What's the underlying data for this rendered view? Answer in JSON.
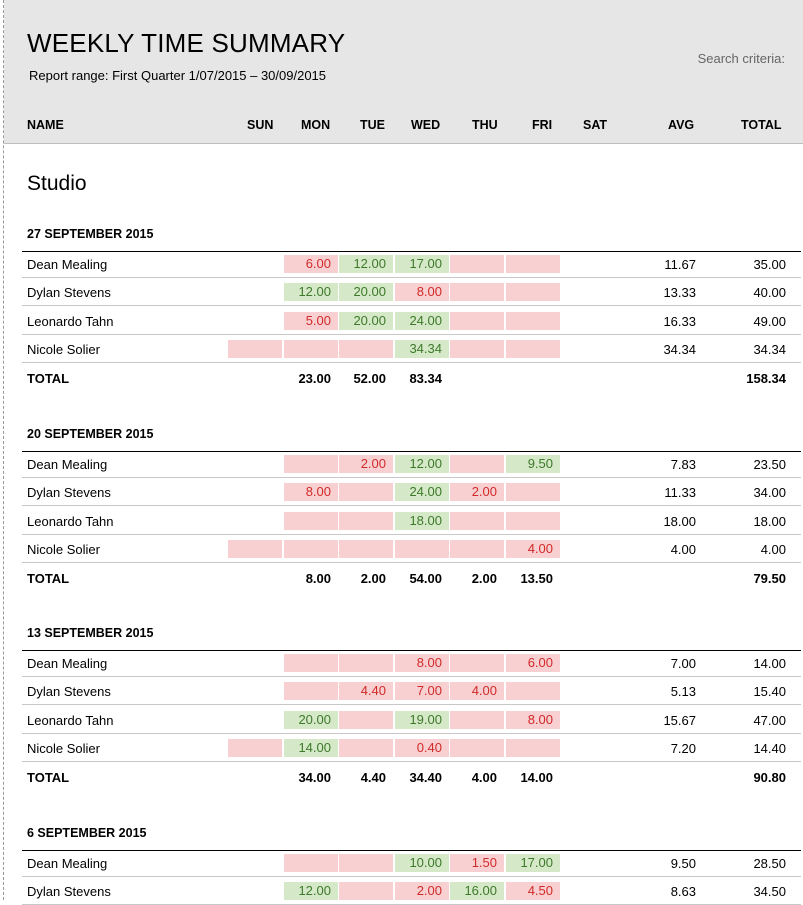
{
  "report": {
    "title": "WEEKLY TIME SUMMARY",
    "range": "Report range: First Quarter 1/07/2015 – 30/09/2015",
    "search_label": "Search criteria:"
  },
  "columns": [
    "NAME",
    "SUN",
    "MON",
    "TUE",
    "WED",
    "THU",
    "FRI",
    "SAT",
    "AVG",
    "TOTAL"
  ],
  "section_title": "Studio",
  "colors": {
    "over": "#d5e8c8",
    "under": "#f9d0d1"
  },
  "weeks": [
    {
      "label": "27 SEPTEMBER 2015",
      "rows": [
        {
          "name": "Dean Mealing",
          "cells": [
            {
              "v": "",
              "s": ""
            },
            {
              "v": "6.00",
              "s": "red"
            },
            {
              "v": "12.00",
              "s": "green"
            },
            {
              "v": "17.00",
              "s": "green"
            },
            {
              "v": "",
              "s": "red"
            },
            {
              "v": "",
              "s": "red"
            },
            {
              "v": "",
              "s": ""
            }
          ],
          "avg": "11.67",
          "total": "35.00"
        },
        {
          "name": "Dylan Stevens",
          "cells": [
            {
              "v": "",
              "s": ""
            },
            {
              "v": "12.00",
              "s": "green"
            },
            {
              "v": "20.00",
              "s": "green"
            },
            {
              "v": "8.00",
              "s": "red"
            },
            {
              "v": "",
              "s": "red"
            },
            {
              "v": "",
              "s": "red"
            },
            {
              "v": "",
              "s": ""
            }
          ],
          "avg": "13.33",
          "total": "40.00"
        },
        {
          "name": "Leonardo Tahn",
          "cells": [
            {
              "v": "",
              "s": ""
            },
            {
              "v": "5.00",
              "s": "red"
            },
            {
              "v": "20.00",
              "s": "green"
            },
            {
              "v": "24.00",
              "s": "green"
            },
            {
              "v": "",
              "s": "red"
            },
            {
              "v": "",
              "s": "red"
            },
            {
              "v": "",
              "s": ""
            }
          ],
          "avg": "16.33",
          "total": "49.00"
        },
        {
          "name": "Nicole Solier",
          "cells": [
            {
              "v": "",
              "s": "red"
            },
            {
              "v": "",
              "s": "red"
            },
            {
              "v": "",
              "s": "red"
            },
            {
              "v": "34.34",
              "s": "green"
            },
            {
              "v": "",
              "s": "red"
            },
            {
              "v": "",
              "s": "red"
            },
            {
              "v": "",
              "s": ""
            }
          ],
          "avg": "34.34",
          "total": "34.34"
        }
      ],
      "totals": {
        "label": "TOTAL",
        "days": [
          "",
          "23.00",
          "52.00",
          "83.34",
          "",
          "",
          ""
        ],
        "total": "158.34"
      }
    },
    {
      "label": "20 SEPTEMBER 2015",
      "rows": [
        {
          "name": "Dean Mealing",
          "cells": [
            {
              "v": "",
              "s": ""
            },
            {
              "v": "",
              "s": "red"
            },
            {
              "v": "2.00",
              "s": "red"
            },
            {
              "v": "12.00",
              "s": "green"
            },
            {
              "v": "",
              "s": "red"
            },
            {
              "v": "9.50",
              "s": "green"
            },
            {
              "v": "",
              "s": ""
            }
          ],
          "avg": "7.83",
          "total": "23.50"
        },
        {
          "name": "Dylan Stevens",
          "cells": [
            {
              "v": "",
              "s": ""
            },
            {
              "v": "8.00",
              "s": "red"
            },
            {
              "v": "",
              "s": "red"
            },
            {
              "v": "24.00",
              "s": "green"
            },
            {
              "v": "2.00",
              "s": "red"
            },
            {
              "v": "",
              "s": "red"
            },
            {
              "v": "",
              "s": ""
            }
          ],
          "avg": "11.33",
          "total": "34.00"
        },
        {
          "name": "Leonardo Tahn",
          "cells": [
            {
              "v": "",
              "s": ""
            },
            {
              "v": "",
              "s": "red"
            },
            {
              "v": "",
              "s": "red"
            },
            {
              "v": "18.00",
              "s": "green"
            },
            {
              "v": "",
              "s": "red"
            },
            {
              "v": "",
              "s": "red"
            },
            {
              "v": "",
              "s": ""
            }
          ],
          "avg": "18.00",
          "total": "18.00"
        },
        {
          "name": "Nicole Solier",
          "cells": [
            {
              "v": "",
              "s": "red"
            },
            {
              "v": "",
              "s": "red"
            },
            {
              "v": "",
              "s": "red"
            },
            {
              "v": "",
              "s": "red"
            },
            {
              "v": "",
              "s": "red"
            },
            {
              "v": "4.00",
              "s": "red"
            },
            {
              "v": "",
              "s": ""
            }
          ],
          "avg": "4.00",
          "total": "4.00"
        }
      ],
      "totals": {
        "label": "TOTAL",
        "days": [
          "",
          "8.00",
          "2.00",
          "54.00",
          "2.00",
          "13.50",
          ""
        ],
        "total": "79.50"
      }
    },
    {
      "label": "13 SEPTEMBER 2015",
      "rows": [
        {
          "name": "Dean Mealing",
          "cells": [
            {
              "v": "",
              "s": ""
            },
            {
              "v": "",
              "s": "red"
            },
            {
              "v": "",
              "s": "red"
            },
            {
              "v": "8.00",
              "s": "red"
            },
            {
              "v": "",
              "s": "red"
            },
            {
              "v": "6.00",
              "s": "red"
            },
            {
              "v": "",
              "s": ""
            }
          ],
          "avg": "7.00",
          "total": "14.00"
        },
        {
          "name": "Dylan Stevens",
          "cells": [
            {
              "v": "",
              "s": ""
            },
            {
              "v": "",
              "s": "red"
            },
            {
              "v": "4.40",
              "s": "red"
            },
            {
              "v": "7.00",
              "s": "red"
            },
            {
              "v": "4.00",
              "s": "red"
            },
            {
              "v": "",
              "s": "red"
            },
            {
              "v": "",
              "s": ""
            }
          ],
          "avg": "5.13",
          "total": "15.40"
        },
        {
          "name": "Leonardo Tahn",
          "cells": [
            {
              "v": "",
              "s": ""
            },
            {
              "v": "20.00",
              "s": "green"
            },
            {
              "v": "",
              "s": "red"
            },
            {
              "v": "19.00",
              "s": "green"
            },
            {
              "v": "",
              "s": "red"
            },
            {
              "v": "8.00",
              "s": "red"
            },
            {
              "v": "",
              "s": ""
            }
          ],
          "avg": "15.67",
          "total": "47.00"
        },
        {
          "name": "Nicole Solier",
          "cells": [
            {
              "v": "",
              "s": "red"
            },
            {
              "v": "14.00",
              "s": "green"
            },
            {
              "v": "",
              "s": "red"
            },
            {
              "v": "0.40",
              "s": "red"
            },
            {
              "v": "",
              "s": "red"
            },
            {
              "v": "",
              "s": "red"
            },
            {
              "v": "",
              "s": ""
            }
          ],
          "avg": "7.20",
          "total": "14.40"
        }
      ],
      "totals": {
        "label": "TOTAL",
        "days": [
          "",
          "34.00",
          "4.40",
          "34.40",
          "4.00",
          "14.00",
          ""
        ],
        "total": "90.80"
      }
    },
    {
      "label": "6 SEPTEMBER 2015",
      "rows": [
        {
          "name": "Dean Mealing",
          "cells": [
            {
              "v": "",
              "s": ""
            },
            {
              "v": "",
              "s": "red"
            },
            {
              "v": "",
              "s": "red"
            },
            {
              "v": "10.00",
              "s": "green"
            },
            {
              "v": "1.50",
              "s": "red"
            },
            {
              "v": "17.00",
              "s": "green"
            },
            {
              "v": "",
              "s": ""
            }
          ],
          "avg": "9.50",
          "total": "28.50"
        },
        {
          "name": "Dylan Stevens",
          "cells": [
            {
              "v": "",
              "s": ""
            },
            {
              "v": "12.00",
              "s": "green"
            },
            {
              "v": "",
              "s": "red"
            },
            {
              "v": "2.00",
              "s": "red"
            },
            {
              "v": "16.00",
              "s": "green"
            },
            {
              "v": "4.50",
              "s": "red"
            },
            {
              "v": "",
              "s": ""
            }
          ],
          "avg": "8.63",
          "total": "34.50"
        }
      ]
    }
  ]
}
